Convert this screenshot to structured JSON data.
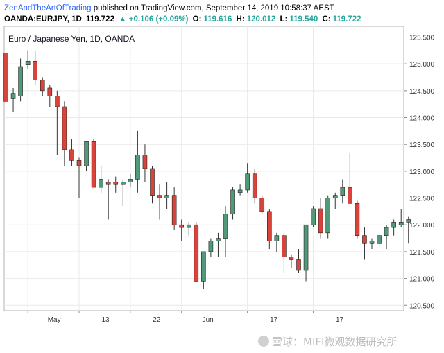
{
  "header": {
    "author": "ZenAndTheArtOfTrading",
    "published": "published on TradingView.com, September 14, 2019 10:58:37 AEST",
    "symbol": "OANDA:EURJPY, 1D",
    "last": "119.722",
    "change": "▲ +0.106 (+0.09%)",
    "o_label": "O:",
    "o_value": "119.616",
    "h_label": "H:",
    "h_value": "120.012",
    "l_label": "L:",
    "l_value": "119.540",
    "c_label": "C:",
    "c_value": "119.722"
  },
  "watermark": "雪球：MIFI微观数据研究所",
  "colors": {
    "up": "#4f9a78",
    "down": "#d9443a",
    "wick": "#333333",
    "grid": "#e9e9e9",
    "axis": "#888888"
  },
  "chart_data": {
    "type": "candlestick",
    "title": "Euro / Japanese Yen, 1D, OANDA",
    "y_tick_labels": [
      "125.500",
      "125.000",
      "124.500",
      "124.000",
      "123.500",
      "123.000",
      "122.500",
      "122.000",
      "121.500",
      "121.000",
      "120.500"
    ],
    "ylim": [
      120.4,
      125.7
    ],
    "x_tick_labels": [
      {
        "label": "May",
        "index": 3
      },
      {
        "label": "13",
        "index": 10
      },
      {
        "label": "22",
        "index": 17
      },
      {
        "label": "Jun",
        "index": 24
      },
      {
        "label": "17",
        "index": 33
      },
      {
        "label": "17",
        "index": 42
      }
    ],
    "candles": [
      {
        "o": 125.2,
        "h": 125.4,
        "l": 124.1,
        "c": 124.3
      },
      {
        "o": 124.35,
        "h": 124.55,
        "l": 124.1,
        "c": 124.45
      },
      {
        "o": 124.4,
        "h": 125.1,
        "l": 124.3,
        "c": 124.95
      },
      {
        "o": 124.98,
        "h": 125.25,
        "l": 124.9,
        "c": 125.05
      },
      {
        "o": 125.05,
        "h": 125.25,
        "l": 124.6,
        "c": 124.7
      },
      {
        "o": 124.7,
        "h": 124.75,
        "l": 124.4,
        "c": 124.5
      },
      {
        "o": 124.55,
        "h": 124.6,
        "l": 124.2,
        "c": 124.4
      },
      {
        "o": 124.4,
        "h": 124.5,
        "l": 123.3,
        "c": 124.2
      },
      {
        "o": 124.2,
        "h": 124.3,
        "l": 123.1,
        "c": 123.4
      },
      {
        "o": 123.4,
        "h": 123.6,
        "l": 123.1,
        "c": 123.2
      },
      {
        "o": 123.2,
        "h": 123.25,
        "l": 122.5,
        "c": 123.1
      },
      {
        "o": 123.1,
        "h": 123.55,
        "l": 123.0,
        "c": 123.55
      },
      {
        "o": 123.55,
        "h": 123.6,
        "l": 122.7,
        "c": 122.7
      },
      {
        "o": 122.7,
        "h": 123.1,
        "l": 122.6,
        "c": 122.85
      },
      {
        "o": 122.8,
        "h": 122.85,
        "l": 122.1,
        "c": 122.75
      },
      {
        "o": 122.8,
        "h": 122.9,
        "l": 122.6,
        "c": 122.75
      },
      {
        "o": 122.75,
        "h": 122.85,
        "l": 122.35,
        "c": 122.8
      },
      {
        "o": 122.8,
        "h": 122.95,
        "l": 122.7,
        "c": 122.85
      },
      {
        "o": 122.85,
        "h": 123.75,
        "l": 122.6,
        "c": 123.3
      },
      {
        "o": 123.3,
        "h": 123.5,
        "l": 122.8,
        "c": 123.05
      },
      {
        "o": 123.05,
        "h": 123.1,
        "l": 122.4,
        "c": 122.55
      },
      {
        "o": 122.55,
        "h": 122.75,
        "l": 122.1,
        "c": 122.5
      },
      {
        "o": 122.5,
        "h": 122.8,
        "l": 122.3,
        "c": 122.55
      },
      {
        "o": 122.55,
        "h": 122.7,
        "l": 121.9,
        "c": 122.0
      },
      {
        "o": 122.0,
        "h": 122.1,
        "l": 121.7,
        "c": 121.95
      },
      {
        "o": 121.95,
        "h": 122.05,
        "l": 121.8,
        "c": 122.0
      },
      {
        "o": 122.0,
        "h": 122.05,
        "l": 120.95,
        "c": 120.95
      },
      {
        "o": 120.95,
        "h": 121.5,
        "l": 120.8,
        "c": 121.5
      },
      {
        "o": 121.5,
        "h": 121.75,
        "l": 121.4,
        "c": 121.7
      },
      {
        "o": 121.7,
        "h": 121.85,
        "l": 121.4,
        "c": 121.75
      },
      {
        "o": 121.75,
        "h": 122.35,
        "l": 121.4,
        "c": 122.2
      },
      {
        "o": 122.2,
        "h": 122.7,
        "l": 122.1,
        "c": 122.65
      },
      {
        "o": 122.6,
        "h": 122.75,
        "l": 122.55,
        "c": 122.65
      },
      {
        "o": 122.65,
        "h": 123.15,
        "l": 122.6,
        "c": 122.95
      },
      {
        "o": 122.95,
        "h": 123.05,
        "l": 122.4,
        "c": 122.5
      },
      {
        "o": 122.5,
        "h": 122.55,
        "l": 122.2,
        "c": 122.25
      },
      {
        "o": 122.25,
        "h": 122.3,
        "l": 121.55,
        "c": 121.7
      },
      {
        "o": 121.7,
        "h": 121.85,
        "l": 121.5,
        "c": 121.8
      },
      {
        "o": 121.8,
        "h": 121.85,
        "l": 121.1,
        "c": 121.4
      },
      {
        "o": 121.4,
        "h": 121.45,
        "l": 121.2,
        "c": 121.35
      },
      {
        "o": 121.35,
        "h": 121.55,
        "l": 121.1,
        "c": 121.15
      },
      {
        "o": 121.15,
        "h": 122.0,
        "l": 120.95,
        "c": 122.0
      },
      {
        "o": 122.0,
        "h": 122.35,
        "l": 121.95,
        "c": 122.3
      },
      {
        "o": 122.3,
        "h": 122.5,
        "l": 121.75,
        "c": 121.85
      },
      {
        "o": 121.85,
        "h": 122.55,
        "l": 121.75,
        "c": 122.5
      },
      {
        "o": 122.5,
        "h": 122.6,
        "l": 122.3,
        "c": 122.55
      },
      {
        "o": 122.55,
        "h": 122.85,
        "l": 122.4,
        "c": 122.7
      },
      {
        "o": 122.7,
        "h": 123.35,
        "l": 122.4,
        "c": 122.4
      },
      {
        "o": 122.4,
        "h": 122.45,
        "l": 121.75,
        "c": 121.8
      },
      {
        "o": 121.8,
        "h": 121.95,
        "l": 121.35,
        "c": 121.65
      },
      {
        "o": 121.65,
        "h": 121.75,
        "l": 121.55,
        "c": 121.7
      },
      {
        "o": 121.65,
        "h": 121.85,
        "l": 121.55,
        "c": 121.8
      },
      {
        "o": 121.8,
        "h": 122.0,
        "l": 121.55,
        "c": 121.95
      },
      {
        "o": 121.95,
        "h": 122.1,
        "l": 121.8,
        "c": 122.05
      },
      {
        "o": 122.0,
        "h": 122.3,
        "l": 121.95,
        "c": 122.05
      },
      {
        "o": 122.05,
        "h": 122.15,
        "l": 121.65,
        "c": 122.1
      }
    ]
  }
}
